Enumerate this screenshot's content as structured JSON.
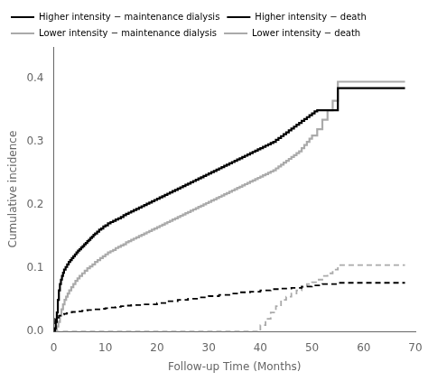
{
  "chart_data": {
    "type": "line",
    "xlabel": "Follow-up Time (Months)",
    "ylabel": "Cumulative incidence",
    "xlim": [
      0,
      70
    ],
    "ylim": [
      0,
      0.45
    ],
    "xticks": [
      0,
      10,
      20,
      30,
      40,
      50,
      60,
      70
    ],
    "yticks": [
      {
        "value": 0,
        "label": "0.0"
      },
      0.1,
      0.2,
      0.3,
      0.4
    ],
    "grid": false,
    "legend": "upper left",
    "series": [
      {
        "name": "Higher intensity − maintenance dialysis",
        "color": "#000000",
        "line_style": "dashed",
        "x": [
          0,
          0.3,
          0.7,
          1.0,
          1.5,
          2.0,
          2.5,
          3.0,
          3.5,
          4.0,
          4.5,
          5.0,
          5.5,
          6.0,
          6.5,
          7.0,
          7.5,
          8.0,
          8.5,
          9.0,
          9.5,
          10.0,
          10.5,
          11.0,
          12.0,
          13.0,
          14.0,
          15.0,
          16.0,
          17.0,
          18.0,
          20.0,
          22.0,
          24.0,
          26.0,
          28.0,
          30.0,
          32.0,
          34.0,
          36.0,
          38.0,
          40.0,
          42.0,
          44.0,
          46.0,
          48.0,
          50.0,
          52.0,
          55.0,
          60.0,
          65.0,
          68.0
        ],
        "values": [
          0.0,
          0.02,
          0.022,
          0.025,
          0.027,
          0.028,
          0.029,
          0.03,
          0.031,
          0.031,
          0.032,
          0.032,
          0.033,
          0.033,
          0.034,
          0.034,
          0.035,
          0.035,
          0.035,
          0.036,
          0.036,
          0.037,
          0.037,
          0.038,
          0.039,
          0.04,
          0.041,
          0.042,
          0.042,
          0.043,
          0.043,
          0.045,
          0.048,
          0.05,
          0.052,
          0.054,
          0.056,
          0.058,
          0.06,
          0.062,
          0.063,
          0.065,
          0.067,
          0.068,
          0.069,
          0.071,
          0.073,
          0.075,
          0.077,
          0.077,
          0.077,
          0.077
        ]
      },
      {
        "name": "Higher intensity − death",
        "color": "#000000",
        "line_style": "solid",
        "x": [
          0,
          0.2,
          0.4,
          0.6,
          0.8,
          1.0,
          1.2,
          1.4,
          1.6,
          1.8,
          2.0,
          2.3,
          2.6,
          2.9,
          3.2,
          3.5,
          3.8,
          4.1,
          4.4,
          4.7,
          5.0,
          5.3,
          5.6,
          5.9,
          6.2,
          6.5,
          6.8,
          7.1,
          7.4,
          7.7,
          8.0,
          8.4,
          8.8,
          9.2,
          9.6,
          10.0,
          10.5,
          11.0,
          11.5,
          12.0,
          12.5,
          13.0,
          13.5,
          14.0,
          14.5,
          15.0,
          15.5,
          16.0,
          16.5,
          17.0,
          17.5,
          18.0,
          18.5,
          19.0,
          19.5,
          20.0,
          20.5,
          21.0,
          21.5,
          22.0,
          22.5,
          23.0,
          23.5,
          24.0,
          24.5,
          25.0,
          25.5,
          26.0,
          26.5,
          27.0,
          27.5,
          28.0,
          28.5,
          29.0,
          29.5,
          30.0,
          30.5,
          31.0,
          31.5,
          32.0,
          32.5,
          33.0,
          33.5,
          34.0,
          34.5,
          35.0,
          35.5,
          36.0,
          36.5,
          37.0,
          37.5,
          38.0,
          38.5,
          39.0,
          39.5,
          40.0,
          40.5,
          41.0,
          41.5,
          42.0,
          42.5,
          43.0,
          43.5,
          44.0,
          44.5,
          45.0,
          45.5,
          46.0,
          46.5,
          47.0,
          47.5,
          48.0,
          48.5,
          49.0,
          49.5,
          50.0,
          50.5,
          51.0,
          55.0,
          60.0,
          65.0,
          68.0
        ],
        "values": [
          0.0,
          0.005,
          0.015,
          0.03,
          0.05,
          0.065,
          0.075,
          0.082,
          0.088,
          0.093,
          0.098,
          0.102,
          0.106,
          0.11,
          0.113,
          0.116,
          0.119,
          0.122,
          0.125,
          0.128,
          0.13,
          0.133,
          0.135,
          0.138,
          0.14,
          0.143,
          0.145,
          0.148,
          0.15,
          0.153,
          0.155,
          0.158,
          0.161,
          0.163,
          0.166,
          0.168,
          0.171,
          0.173,
          0.175,
          0.177,
          0.179,
          0.181,
          0.184,
          0.186,
          0.188,
          0.19,
          0.192,
          0.194,
          0.196,
          0.198,
          0.2,
          0.202,
          0.204,
          0.206,
          0.208,
          0.21,
          0.212,
          0.214,
          0.216,
          0.218,
          0.22,
          0.222,
          0.224,
          0.226,
          0.228,
          0.23,
          0.232,
          0.234,
          0.236,
          0.238,
          0.24,
          0.242,
          0.244,
          0.246,
          0.248,
          0.25,
          0.252,
          0.254,
          0.256,
          0.258,
          0.26,
          0.262,
          0.264,
          0.266,
          0.268,
          0.27,
          0.272,
          0.274,
          0.276,
          0.278,
          0.28,
          0.282,
          0.284,
          0.286,
          0.288,
          0.29,
          0.292,
          0.294,
          0.296,
          0.298,
          0.3,
          0.303,
          0.306,
          0.309,
          0.312,
          0.315,
          0.318,
          0.321,
          0.324,
          0.327,
          0.33,
          0.333,
          0.336,
          0.339,
          0.342,
          0.345,
          0.348,
          0.35,
          0.385,
          0.385,
          0.385,
          0.385
        ]
      },
      {
        "name": "Lower intensity − maintenance dialysis",
        "color": "#aaaaaa",
        "line_style": "dashed",
        "x": [
          0,
          5,
          10,
          15,
          20,
          25,
          30,
          35,
          37,
          39,
          40,
          41,
          42,
          43,
          44,
          45,
          46,
          47,
          48,
          49,
          50,
          51,
          52,
          53,
          54,
          55,
          60,
          65,
          68
        ],
        "values": [
          0.0,
          0.0,
          0.0,
          0.0,
          0.0,
          0.0,
          0.0,
          0.0,
          0.0,
          0.0,
          0.01,
          0.02,
          0.03,
          0.04,
          0.05,
          0.055,
          0.06,
          0.065,
          0.07,
          0.075,
          0.078,
          0.082,
          0.088,
          0.092,
          0.098,
          0.105,
          0.105,
          0.105,
          0.105
        ]
      },
      {
        "name": "Lower intensity − death",
        "color": "#aaaaaa",
        "line_style": "solid",
        "x": [
          0,
          0.3,
          0.6,
          0.9,
          1.2,
          1.5,
          1.8,
          2.1,
          2.4,
          2.7,
          3.0,
          3.4,
          3.8,
          4.2,
          4.6,
          5.0,
          5.5,
          6.0,
          6.5,
          7.0,
          7.5,
          8.0,
          8.5,
          9.0,
          9.5,
          10.0,
          10.5,
          11.0,
          11.5,
          12.0,
          12.5,
          13.0,
          13.5,
          14.0,
          14.5,
          15.0,
          15.5,
          16.0,
          16.5,
          17.0,
          17.5,
          18.0,
          18.5,
          19.0,
          19.5,
          20.0,
          20.5,
          21.0,
          21.5,
          22.0,
          22.5,
          23.0,
          23.5,
          24.0,
          24.5,
          25.0,
          25.5,
          26.0,
          26.5,
          27.0,
          27.5,
          28.0,
          28.5,
          29.0,
          29.5,
          30.0,
          30.5,
          31.0,
          31.5,
          32.0,
          32.5,
          33.0,
          33.5,
          34.0,
          34.5,
          35.0,
          35.5,
          36.0,
          36.5,
          37.0,
          37.5,
          38.0,
          38.5,
          39.0,
          39.5,
          40.0,
          40.5,
          41.0,
          41.5,
          42.0,
          42.5,
          43.0,
          43.5,
          44.0,
          44.5,
          45.0,
          45.5,
          46.0,
          46.5,
          47.0,
          47.5,
          48.0,
          48.5,
          49.0,
          49.5,
          50.0,
          51.0,
          52.0,
          53.0,
          54.0,
          55.0,
          60.0,
          65.0,
          68.0
        ],
        "values": [
          0.0,
          0.003,
          0.008,
          0.015,
          0.025,
          0.035,
          0.043,
          0.05,
          0.055,
          0.06,
          0.065,
          0.07,
          0.075,
          0.08,
          0.084,
          0.088,
          0.092,
          0.096,
          0.1,
          0.103,
          0.106,
          0.11,
          0.113,
          0.116,
          0.119,
          0.122,
          0.125,
          0.127,
          0.129,
          0.132,
          0.134,
          0.136,
          0.138,
          0.141,
          0.143,
          0.145,
          0.147,
          0.149,
          0.151,
          0.153,
          0.155,
          0.157,
          0.159,
          0.161,
          0.163,
          0.165,
          0.167,
          0.169,
          0.171,
          0.173,
          0.175,
          0.177,
          0.179,
          0.181,
          0.183,
          0.185,
          0.187,
          0.189,
          0.191,
          0.193,
          0.195,
          0.197,
          0.199,
          0.201,
          0.203,
          0.205,
          0.207,
          0.209,
          0.211,
          0.213,
          0.215,
          0.217,
          0.219,
          0.221,
          0.223,
          0.225,
          0.227,
          0.229,
          0.231,
          0.233,
          0.235,
          0.237,
          0.239,
          0.241,
          0.243,
          0.245,
          0.247,
          0.249,
          0.251,
          0.253,
          0.255,
          0.258,
          0.261,
          0.264,
          0.267,
          0.27,
          0.273,
          0.276,
          0.279,
          0.282,
          0.285,
          0.29,
          0.295,
          0.3,
          0.305,
          0.31,
          0.32,
          0.335,
          0.35,
          0.365,
          0.395,
          0.395,
          0.395,
          0.395
        ]
      }
    ]
  }
}
